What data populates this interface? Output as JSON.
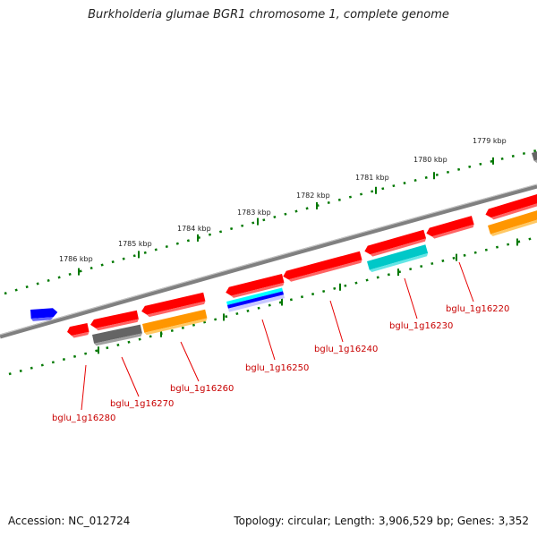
{
  "title": "Burkholderia glumae BGR1 chromosome 1, complete genome",
  "footer": {
    "accession": "Accession: NC_012724",
    "summary": "Topology: circular; Length: 3,906,529 bp; Genes: 3,352"
  },
  "ticks": [
    {
      "label": "1786 kbp"
    },
    {
      "label": "1785 kbp"
    },
    {
      "label": "1784 kbp"
    },
    {
      "label": "1783 kbp"
    },
    {
      "label": "1782 kbp"
    },
    {
      "label": "1781 kbp"
    },
    {
      "label": "1780 kbp"
    },
    {
      "label": "1779 kbp"
    }
  ],
  "gene_labels": [
    {
      "name": "bglu_1g16280"
    },
    {
      "name": "bglu_1g16270"
    },
    {
      "name": "bglu_1g16260"
    },
    {
      "name": "bglu_1g16250"
    },
    {
      "name": "bglu_1g16240"
    },
    {
      "name": "bglu_1g16230"
    },
    {
      "name": "bglu_1g16220"
    }
  ],
  "colors": {
    "gene_red": "#ff0000",
    "gene_gray": "#646464",
    "gene_orange": "#ff9600",
    "gene_cyan": "#00c8c8",
    "gene_blue": "#0000ff",
    "backbone": "#808080",
    "tick_green": "#007800",
    "label_red": "#c80000"
  }
}
